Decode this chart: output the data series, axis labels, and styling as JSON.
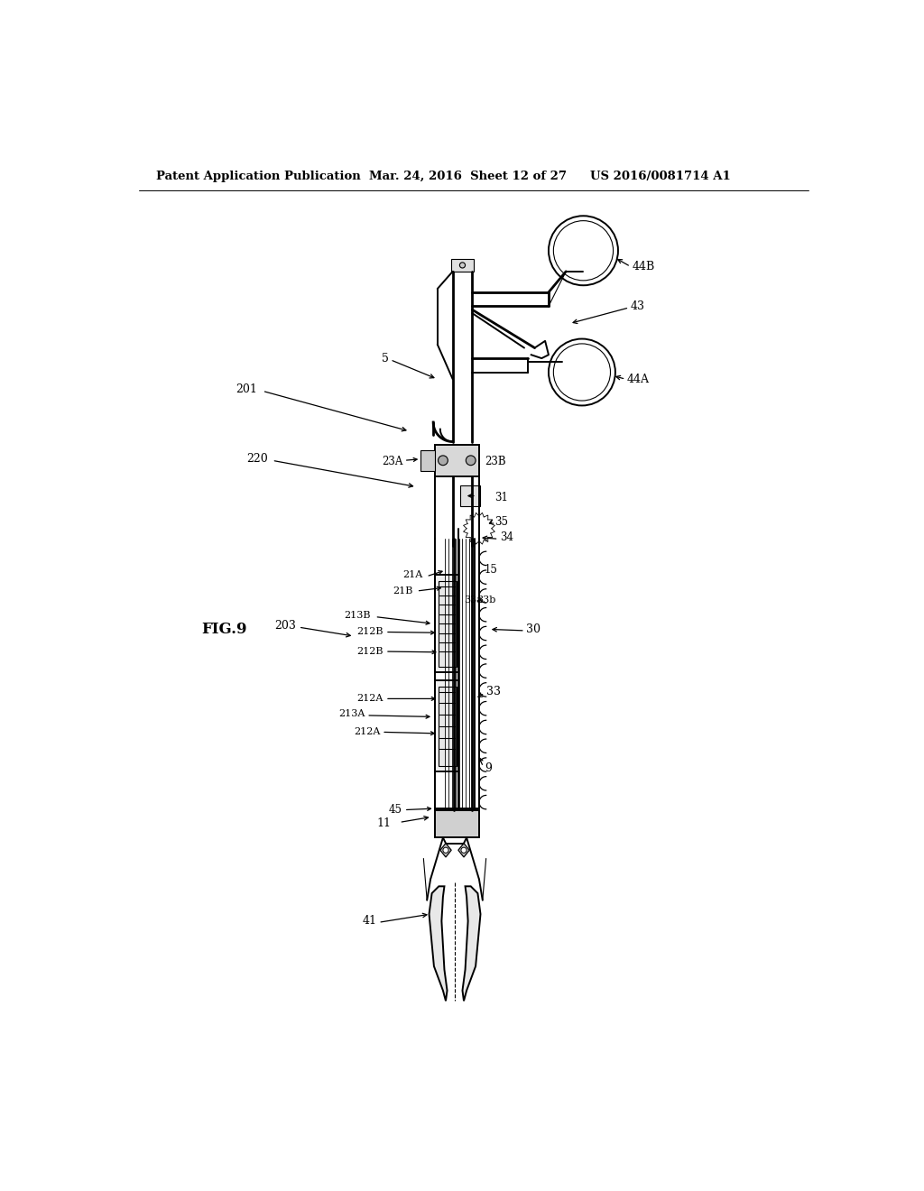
{
  "bg_color": "#ffffff",
  "header_left": "Patent Application Publication",
  "header_mid": "Mar. 24, 2016  Sheet 12 of 27",
  "header_right": "US 2016/0081714 A1",
  "fig_label": "FIG.9"
}
